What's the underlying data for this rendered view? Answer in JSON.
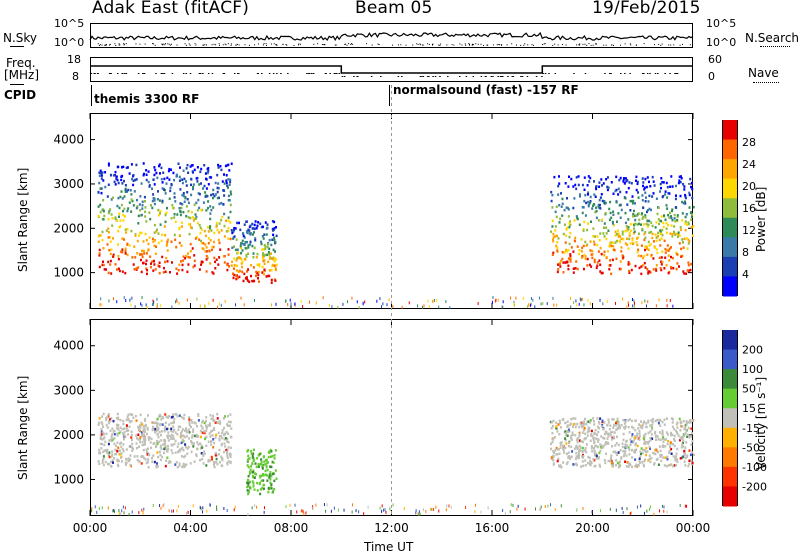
{
  "header": {
    "radar": "Adak East (fitACF)",
    "beam": "Beam 05",
    "date": "19/Feb/2015"
  },
  "left_labels": {
    "nsky": "N.Sky",
    "freq_line1": "Freq.",
    "freq_line2": "[MHz]",
    "cpid": "CPID"
  },
  "right_labels": {
    "nsearch": "N.Search",
    "nave": "Nave"
  },
  "nsky_ticks": [
    "10^5",
    "10^0"
  ],
  "nsearch_ticks": [
    "10^5",
    "10^0"
  ],
  "freq_ticks": [
    "18",
    "8"
  ],
  "nave_ticks": [
    "60",
    "0"
  ],
  "cpid_labels": {
    "first": "themis 3300 RF",
    "second": "normalsound (fast) -157 RF"
  },
  "chart_data": [
    {
      "type": "heatmap",
      "name": "Power",
      "ylabel": "Slant Range [km]",
      "xlabel": "Time UT",
      "x_ticks": [
        "00:00",
        "04:00",
        "08:00",
        "12:00",
        "16:00",
        "20:00",
        "00:00"
      ],
      "x_hours": [
        0,
        4,
        8,
        12,
        16,
        20,
        24
      ],
      "y_ticks": [
        1000,
        2000,
        3000,
        4000
      ],
      "ylim": [
        180,
        4600
      ],
      "colorbar_label": "Power [dB]",
      "colorbar_ticks": [
        "28",
        "24",
        "20",
        "16",
        "12",
        "8",
        "4"
      ],
      "colorbar_colors": [
        "#e60000",
        "#ff6600",
        "#ffa500",
        "#ffd700",
        "#8fbc3a",
        "#2e8b57",
        "#3a7aa8",
        "#1a3fb3",
        "#0000ff"
      ],
      "echo_regions": [
        {
          "t_start": 0.3,
          "t_end": 5.6,
          "r_min": 1000,
          "r_max": 3500,
          "level": "mixed"
        },
        {
          "t_start": 5.6,
          "t_end": 7.4,
          "r_min": 800,
          "r_max": 2200,
          "level": "weak"
        },
        {
          "t_start": 18.3,
          "t_end": 24.0,
          "r_min": 1000,
          "r_max": 3200,
          "level": "mixed"
        }
      ]
    },
    {
      "type": "heatmap",
      "name": "Velocity",
      "ylabel": "Slant Range [km]",
      "xlabel": "Time UT",
      "x_ticks": [
        "00:00",
        "04:00",
        "08:00",
        "12:00",
        "16:00",
        "20:00",
        "00:00"
      ],
      "x_hours": [
        0,
        4,
        8,
        12,
        16,
        20,
        24
      ],
      "y_ticks": [
        1000,
        2000,
        3000,
        4000
      ],
      "ylim": [
        180,
        4600
      ],
      "colorbar_label": "Velocity [m s⁻¹]",
      "colorbar_ticks": [
        "200",
        "100",
        "50",
        "15",
        "-15",
        "-50",
        "-100",
        "-200"
      ],
      "colorbar_colors": [
        "#1a2a9c",
        "#3a5ac8",
        "#3a8a3a",
        "#66cc33",
        "#c0c0b8",
        "#ffb000",
        "#ff7a00",
        "#ff3300",
        "#e60000"
      ],
      "echo_regions": [
        {
          "t_start": 0.3,
          "t_end": 5.6,
          "r_min": 1300,
          "r_max": 2500,
          "level": "ground-scatter"
        },
        {
          "t_start": 6.2,
          "t_end": 7.4,
          "r_min": 700,
          "r_max": 1700,
          "level": "positive"
        },
        {
          "t_start": 18.3,
          "t_end": 24.0,
          "r_min": 1300,
          "r_max": 2400,
          "level": "ground-scatter"
        }
      ]
    }
  ]
}
